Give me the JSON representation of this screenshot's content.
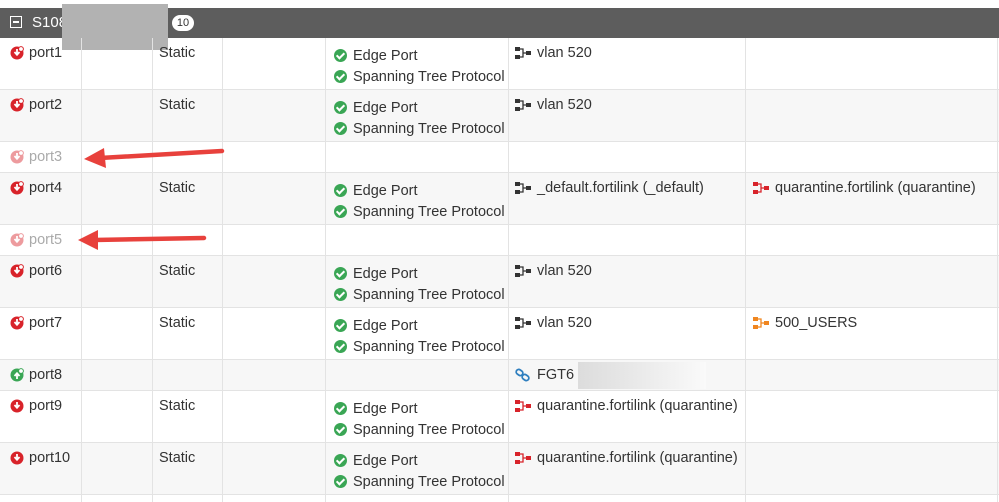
{
  "group": {
    "name": "S108",
    "count": "10"
  },
  "features": {
    "edge": "Edge Port",
    "stp": "Spanning Tree Protocol"
  },
  "rows": [
    {
      "port": "port1",
      "mode": "Static",
      "native_vlan": "vlan 520",
      "allowed_vlan": ""
    },
    {
      "port": "port2",
      "mode": "Static",
      "native_vlan": "vlan 520",
      "allowed_vlan": ""
    },
    {
      "port": "port3",
      "mode": "",
      "native_vlan": "",
      "allowed_vlan": ""
    },
    {
      "port": "port4",
      "mode": "Static",
      "native_vlan": "_default.fortilink (_default)",
      "allowed_vlan": "quarantine.fortilink (quarantine)"
    },
    {
      "port": "port5",
      "mode": "",
      "native_vlan": "",
      "allowed_vlan": ""
    },
    {
      "port": "port6",
      "mode": "Static",
      "native_vlan": "vlan 520",
      "allowed_vlan": ""
    },
    {
      "port": "port7",
      "mode": "Static",
      "native_vlan": "vlan 520",
      "allowed_vlan": "500_USERS"
    },
    {
      "port": "port8",
      "mode": "",
      "native_vlan": "FGT6",
      "allowed_vlan": ""
    },
    {
      "port": "port9",
      "mode": "Static",
      "native_vlan": "quarantine.fortilink (quarantine)",
      "allowed_vlan": ""
    },
    {
      "port": "port10",
      "mode": "Static",
      "native_vlan": "quarantine.fortilink (quarantine)",
      "allowed_vlan": ""
    }
  ],
  "colors": {
    "header": "#5d5d5d",
    "check": "#3aa655",
    "port_down": "#d8232a",
    "port_up": "#3aa655",
    "annotation_arrow": "#e8413c"
  }
}
